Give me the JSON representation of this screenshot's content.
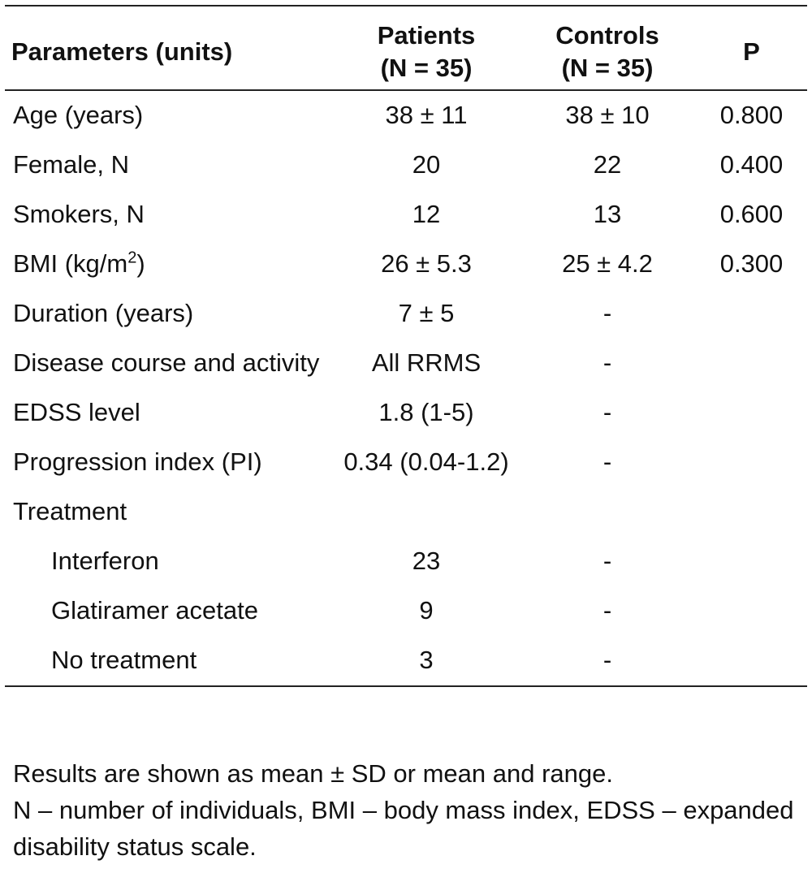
{
  "table": {
    "headers": {
      "param": "Parameters (units)",
      "patients_line1": "Patients",
      "patients_line2": "(N = 35)",
      "controls_line1": "Controls",
      "controls_line2": "(N = 35)",
      "p": "P"
    },
    "rows": [
      {
        "param": "Age (years)",
        "patients": "38 ± 11",
        "controls": "38 ± 10",
        "p": "0.800"
      },
      {
        "param": "Female, N",
        "patients": "20",
        "controls": "22",
        "p": "0.400"
      },
      {
        "param": "Smokers, N",
        "patients": "12",
        "controls": "13",
        "p": "0.600"
      },
      {
        "param": "BMI (kg/m",
        "param_sup": "2",
        "param_tail": ")",
        "patients": "26 ± 5.3",
        "controls": "25 ± 4.2",
        "p": "0.300"
      },
      {
        "param": "Duration (years)",
        "patients": "7 ± 5",
        "controls": "-",
        "p": ""
      },
      {
        "param": "Disease course and activity",
        "patients": "All RRMS",
        "controls": "-",
        "p": ""
      },
      {
        "param": "EDSS level",
        "patients": "1.8 (1-5)",
        "controls": "-",
        "p": ""
      },
      {
        "param": "Progression index (PI)",
        "patients": "0.34 (0.04-1.2)",
        "controls": "-",
        "p": ""
      },
      {
        "param": "Treatment",
        "patients": "",
        "controls": "",
        "p": ""
      },
      {
        "param": "Interferon",
        "patients": "23",
        "controls": "-",
        "p": ""
      },
      {
        "param": "Glatiramer acetate",
        "patients": "9",
        "controls": "-",
        "p": ""
      },
      {
        "param": "No treatment",
        "patients": "3",
        "controls": "-",
        "p": ""
      }
    ]
  },
  "notes": {
    "line1": "Results are shown as mean ± SD or mean and range.",
    "line2": "N – number of individuals, BMI – body mass index, EDSS – expanded disability status scale."
  }
}
